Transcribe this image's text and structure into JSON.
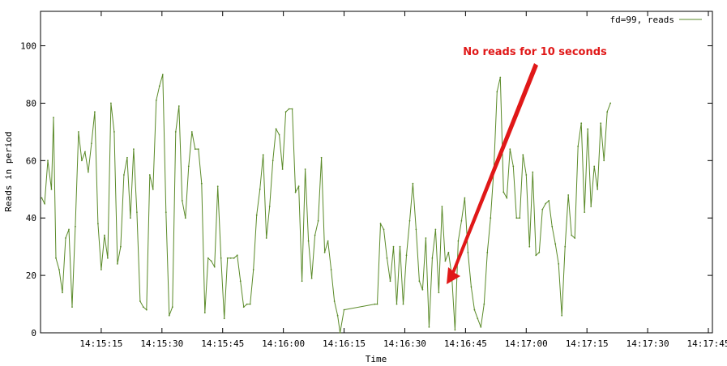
{
  "chart_data": {
    "type": "line",
    "xlabel": "Time",
    "ylabel": "Reads in period",
    "ylim": [
      0,
      112
    ],
    "y_ticks": [
      0,
      20,
      40,
      60,
      80,
      100
    ],
    "x_range_seconds": [
      0,
      166
    ],
    "x_ticks": [
      {
        "label": "14:15:15",
        "t": 15
      },
      {
        "label": "14:15:30",
        "t": 30
      },
      {
        "label": "14:15:45",
        "t": 45
      },
      {
        "label": "14:16:00",
        "t": 60
      },
      {
        "label": "14:16:15",
        "t": 75
      },
      {
        "label": "14:16:30",
        "t": 90
      },
      {
        "label": "14:16:45",
        "t": 105
      },
      {
        "label": "14:17:00",
        "t": 120
      },
      {
        "label": "14:17:15",
        "t": 135
      },
      {
        "label": "14:17:30",
        "t": 150
      },
      {
        "label": "14:17:45",
        "t": 165
      }
    ],
    "grid": false,
    "legend_position": "top-right",
    "series": [
      {
        "name": "fd=99, reads",
        "color": "#5a8a28",
        "points": [
          [
            0.3,
            47
          ],
          [
            1.0,
            45
          ],
          [
            1.8,
            60
          ],
          [
            2.7,
            50
          ],
          [
            3.2,
            75
          ],
          [
            3.8,
            26
          ],
          [
            4.6,
            22
          ],
          [
            5.4,
            14
          ],
          [
            6.2,
            33
          ],
          [
            7.0,
            36
          ],
          [
            7.8,
            9
          ],
          [
            8.6,
            37
          ],
          [
            9.4,
            70
          ],
          [
            10.2,
            60
          ],
          [
            11.0,
            63
          ],
          [
            11.8,
            56
          ],
          [
            12.6,
            66
          ],
          [
            13.4,
            77
          ],
          [
            14.2,
            38
          ],
          [
            15.0,
            22
          ],
          [
            15.8,
            34
          ],
          [
            16.6,
            26
          ],
          [
            17.4,
            80
          ],
          [
            18.2,
            70
          ],
          [
            19.0,
            24
          ],
          [
            19.8,
            30
          ],
          [
            20.6,
            55
          ],
          [
            21.4,
            61
          ],
          [
            22.2,
            40
          ],
          [
            23.0,
            64
          ],
          [
            23.8,
            42
          ],
          [
            24.6,
            11
          ],
          [
            25.4,
            9
          ],
          [
            26.2,
            8
          ],
          [
            27.0,
            55
          ],
          [
            27.8,
            50
          ],
          [
            28.6,
            81
          ],
          [
            29.4,
            86
          ],
          [
            30.2,
            90
          ],
          [
            31.0,
            42
          ],
          [
            31.8,
            6
          ],
          [
            32.6,
            9
          ],
          [
            33.4,
            70
          ],
          [
            34.2,
            79
          ],
          [
            35.0,
            46
          ],
          [
            35.8,
            40
          ],
          [
            36.6,
            58
          ],
          [
            37.4,
            70
          ],
          [
            38.2,
            64
          ],
          [
            39.0,
            64
          ],
          [
            39.8,
            52
          ],
          [
            40.6,
            7
          ],
          [
            41.4,
            26
          ],
          [
            42.2,
            25
          ],
          [
            43.0,
            23
          ],
          [
            43.8,
            51
          ],
          [
            44.6,
            26
          ],
          [
            45.4,
            5
          ],
          [
            46.2,
            26
          ],
          [
            47.0,
            26
          ],
          [
            47.8,
            26
          ],
          [
            48.6,
            27
          ],
          [
            49.4,
            18
          ],
          [
            50.2,
            9
          ],
          [
            51.0,
            10
          ],
          [
            51.8,
            10
          ],
          [
            52.6,
            22
          ],
          [
            53.4,
            41
          ],
          [
            54.2,
            50
          ],
          [
            55.0,
            62
          ],
          [
            55.8,
            33
          ],
          [
            56.6,
            44
          ],
          [
            57.4,
            60
          ],
          [
            58.2,
            71
          ],
          [
            59.0,
            69
          ],
          [
            59.8,
            57
          ],
          [
            60.6,
            77
          ],
          [
            61.4,
            78
          ],
          [
            62.2,
            78
          ],
          [
            63.0,
            49
          ],
          [
            63.8,
            51
          ],
          [
            64.6,
            18
          ],
          [
            65.4,
            57
          ],
          [
            66.2,
            32
          ],
          [
            67.0,
            19
          ],
          [
            67.8,
            34
          ],
          [
            68.6,
            39
          ],
          [
            69.4,
            61
          ],
          [
            70.2,
            28
          ],
          [
            71.0,
            32
          ],
          [
            71.8,
            22
          ],
          [
            72.6,
            11
          ],
          [
            73.4,
            6
          ],
          [
            74.0,
            0
          ],
          [
            75.0,
            8
          ],
          [
            82.6,
            10
          ],
          [
            83.2,
            10
          ],
          [
            84.0,
            38
          ],
          [
            84.8,
            36
          ],
          [
            85.6,
            26
          ],
          [
            86.4,
            18
          ],
          [
            87.2,
            30
          ],
          [
            88.0,
            10
          ],
          [
            88.8,
            30
          ],
          [
            89.6,
            10
          ],
          [
            90.4,
            27
          ],
          [
            91.2,
            39
          ],
          [
            92.0,
            52
          ],
          [
            92.8,
            36
          ],
          [
            93.6,
            18
          ],
          [
            94.4,
            15
          ],
          [
            95.2,
            33
          ],
          [
            96.0,
            2
          ],
          [
            96.8,
            26
          ],
          [
            97.6,
            36
          ],
          [
            98.4,
            14
          ],
          [
            99.2,
            44
          ],
          [
            100.0,
            25
          ],
          [
            100.8,
            28
          ],
          [
            101.6,
            20
          ],
          [
            102.4,
            1
          ],
          [
            103.2,
            32
          ],
          [
            104.0,
            39
          ],
          [
            104.8,
            47
          ],
          [
            105.6,
            28
          ],
          [
            106.4,
            16
          ],
          [
            107.2,
            8
          ],
          [
            108.0,
            5
          ],
          [
            108.8,
            2
          ],
          [
            109.6,
            10
          ],
          [
            110.4,
            28
          ],
          [
            111.2,
            40
          ],
          [
            112.0,
            57
          ],
          [
            112.8,
            84
          ],
          [
            113.6,
            89
          ],
          [
            114.4,
            49
          ],
          [
            115.2,
            47
          ],
          [
            116.0,
            64
          ],
          [
            116.8,
            58
          ],
          [
            117.6,
            40
          ],
          [
            118.4,
            40
          ],
          [
            119.2,
            62
          ],
          [
            120.0,
            55
          ],
          [
            120.8,
            30
          ],
          [
            121.6,
            56
          ],
          [
            122.4,
            27
          ],
          [
            123.2,
            28
          ],
          [
            124.0,
            43
          ],
          [
            124.8,
            45
          ],
          [
            125.6,
            46
          ],
          [
            126.4,
            37
          ],
          [
            127.2,
            31
          ],
          [
            128.0,
            24
          ],
          [
            128.8,
            6
          ],
          [
            129.6,
            30
          ],
          [
            130.4,
            48
          ],
          [
            131.2,
            34
          ],
          [
            132.0,
            33
          ],
          [
            132.8,
            65
          ],
          [
            133.6,
            73
          ],
          [
            134.4,
            42
          ],
          [
            135.2,
            71
          ],
          [
            136.0,
            44
          ],
          [
            136.8,
            58
          ],
          [
            137.6,
            50
          ],
          [
            138.4,
            73
          ],
          [
            139.2,
            60
          ],
          [
            140.0,
            77
          ],
          [
            140.8,
            80
          ]
        ]
      }
    ],
    "annotations": [
      {
        "text": "No reads for 10 seconds",
        "color": "#e01818"
      }
    ]
  }
}
